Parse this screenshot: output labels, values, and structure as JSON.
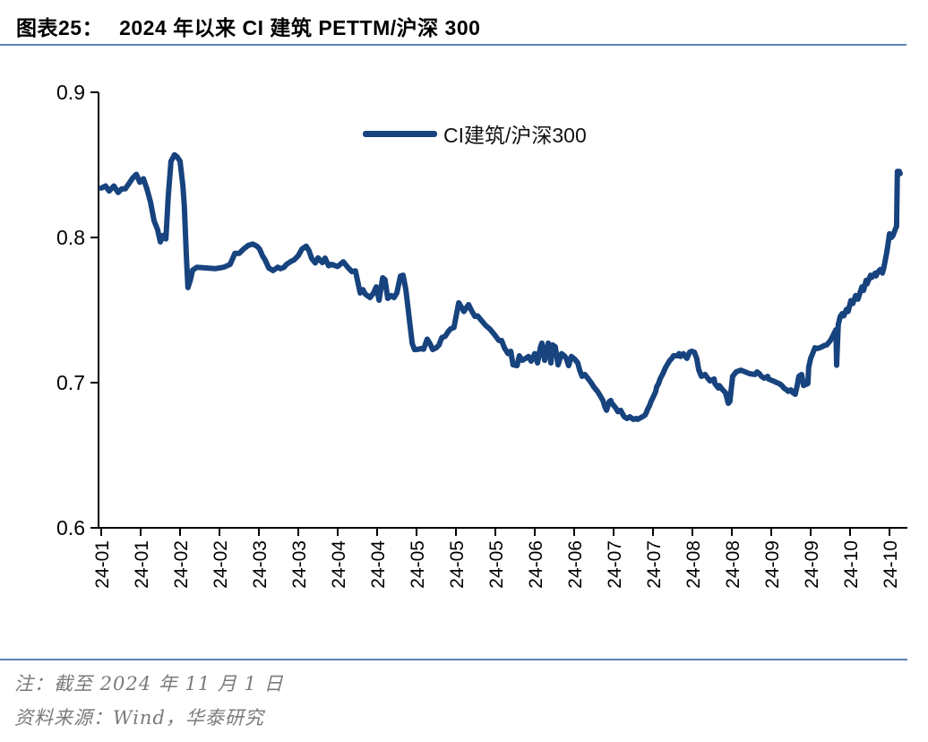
{
  "header": {
    "figure_label": "图表25：",
    "title": "2024 年以来 CI 建筑 PETTM/沪深 300"
  },
  "legend": {
    "series_label": "CI建筑/沪深300"
  },
  "footer": {
    "note": "注：截至 2024 年 11 月 1 日",
    "source": "资料来源：Wind，华泰研究"
  },
  "colors": {
    "line": "#17437E",
    "divider": "#5B84B4",
    "axis": "#000000",
    "tick_text": "#000000",
    "note_text": "#7A7A7A"
  },
  "chart_data": {
    "type": "line",
    "title": "2024 年以来 CI 建筑 PETTM/沪深 300",
    "series_name": "CI建筑/沪深300",
    "legend_position": "top-center",
    "grid": false,
    "ylim": [
      0.6,
      0.9
    ],
    "y_ticks": [
      "0.9",
      "0.8",
      "0.7",
      "0.6"
    ],
    "y_tick_values": [
      0.9,
      0.8,
      0.7,
      0.6
    ],
    "x_unit": "tick index, ticks are biweekly dates Jan–Oct 2024; series ends 2024-11-01",
    "x_tick_labels": [
      "24-01",
      "24-01",
      "24-02",
      "24-02",
      "24-03",
      "24-03",
      "24-04",
      "24-04",
      "24-05",
      "24-05",
      "24-05",
      "24-06",
      "24-06",
      "24-07",
      "24-07",
      "24-08",
      "24-08",
      "24-09",
      "24-09",
      "24-10",
      "24-10"
    ],
    "points": [
      [
        0.0,
        0.834
      ],
      [
        0.11,
        0.8355
      ],
      [
        0.2,
        0.832
      ],
      [
        0.32,
        0.8355
      ],
      [
        0.43,
        0.831
      ],
      [
        0.52,
        0.8335
      ],
      [
        0.61,
        0.8335
      ],
      [
        0.7,
        0.837
      ],
      [
        0.8,
        0.841
      ],
      [
        0.89,
        0.8435
      ],
      [
        0.98,
        0.838
      ],
      [
        1.07,
        0.8405
      ],
      [
        1.16,
        0.8335
      ],
      [
        1.25,
        0.8245
      ],
      [
        1.34,
        0.8115
      ],
      [
        1.43,
        0.8055
      ],
      [
        1.5,
        0.797
      ],
      [
        1.57,
        0.8015
      ],
      [
        1.64,
        0.799
      ],
      [
        1.7,
        0.828
      ],
      [
        1.77,
        0.8525
      ],
      [
        1.86,
        0.857
      ],
      [
        1.93,
        0.8555
      ],
      [
        2.0,
        0.8525
      ],
      [
        2.07,
        0.836
      ],
      [
        2.11,
        0.8215
      ],
      [
        2.16,
        0.788
      ],
      [
        2.2,
        0.7655
      ],
      [
        2.26,
        0.7705
      ],
      [
        2.32,
        0.7775
      ],
      [
        2.43,
        0.7795
      ],
      [
        2.66,
        0.779
      ],
      [
        2.89,
        0.7785
      ],
      [
        3.11,
        0.7795
      ],
      [
        3.27,
        0.7815
      ],
      [
        3.39,
        0.789
      ],
      [
        3.5,
        0.789
      ],
      [
        3.61,
        0.792
      ],
      [
        3.73,
        0.7945
      ],
      [
        3.84,
        0.7955
      ],
      [
        3.95,
        0.794
      ],
      [
        4.02,
        0.792
      ],
      [
        4.09,
        0.7875
      ],
      [
        4.16,
        0.7845
      ],
      [
        4.25,
        0.779
      ],
      [
        4.36,
        0.7772
      ],
      [
        4.48,
        0.7795
      ],
      [
        4.55,
        0.7785
      ],
      [
        4.64,
        0.7795
      ],
      [
        4.7,
        0.7815
      ],
      [
        4.8,
        0.7833
      ],
      [
        4.89,
        0.7845
      ],
      [
        5.0,
        0.7875
      ],
      [
        5.09,
        0.792
      ],
      [
        5.2,
        0.794
      ],
      [
        5.27,
        0.791
      ],
      [
        5.34,
        0.7855
      ],
      [
        5.43,
        0.7825
      ],
      [
        5.5,
        0.786
      ],
      [
        5.61,
        0.7827
      ],
      [
        5.68,
        0.7858
      ],
      [
        5.77,
        0.7805
      ],
      [
        5.84,
        0.7815
      ],
      [
        6.0,
        0.78
      ],
      [
        6.14,
        0.7833
      ],
      [
        6.25,
        0.7796
      ],
      [
        6.36,
        0.7765
      ],
      [
        6.45,
        0.777
      ],
      [
        6.57,
        0.7617
      ],
      [
        6.64,
        0.764
      ],
      [
        6.7,
        0.761
      ],
      [
        6.82,
        0.7586
      ],
      [
        6.91,
        0.7617
      ],
      [
        6.98,
        0.766
      ],
      [
        7.05,
        0.7568
      ],
      [
        7.14,
        0.7722
      ],
      [
        7.2,
        0.771
      ],
      [
        7.27,
        0.758
      ],
      [
        7.36,
        0.76
      ],
      [
        7.43,
        0.7586
      ],
      [
        7.5,
        0.7617
      ],
      [
        7.59,
        0.7734
      ],
      [
        7.66,
        0.774
      ],
      [
        7.73,
        0.764
      ],
      [
        7.82,
        0.743
      ],
      [
        7.89,
        0.727
      ],
      [
        7.95,
        0.7228
      ],
      [
        8.05,
        0.723
      ],
      [
        8.11,
        0.7235
      ],
      [
        8.18,
        0.723
      ],
      [
        8.27,
        0.73
      ],
      [
        8.34,
        0.727
      ],
      [
        8.41,
        0.7228
      ],
      [
        8.5,
        0.724
      ],
      [
        8.57,
        0.726
      ],
      [
        8.64,
        0.731
      ],
      [
        8.73,
        0.732
      ],
      [
        8.8,
        0.735
      ],
      [
        8.86,
        0.737
      ],
      [
        8.95,
        0.738
      ],
      [
        9.07,
        0.755
      ],
      [
        9.14,
        0.752
      ],
      [
        9.2,
        0.749
      ],
      [
        9.32,
        0.7537
      ],
      [
        9.41,
        0.749
      ],
      [
        9.48,
        0.7457
      ],
      [
        9.55,
        0.746
      ],
      [
        9.64,
        0.743
      ],
      [
        9.75,
        0.7395
      ],
      [
        9.86,
        0.737
      ],
      [
        9.98,
        0.733
      ],
      [
        10.09,
        0.729
      ],
      [
        10.16,
        0.729
      ],
      [
        10.23,
        0.724
      ],
      [
        10.32,
        0.72
      ],
      [
        10.39,
        0.7216
      ],
      [
        10.45,
        0.7123
      ],
      [
        10.55,
        0.7117
      ],
      [
        10.61,
        0.7185
      ],
      [
        10.68,
        0.7154
      ],
      [
        10.77,
        0.7167
      ],
      [
        10.84,
        0.718
      ],
      [
        10.91,
        0.7148
      ],
      [
        11.0,
        0.72
      ],
      [
        11.07,
        0.7136
      ],
      [
        11.14,
        0.724
      ],
      [
        11.18,
        0.7272
      ],
      [
        11.25,
        0.7154
      ],
      [
        11.34,
        0.7272
      ],
      [
        11.41,
        0.7136
      ],
      [
        11.45,
        0.726
      ],
      [
        11.52,
        0.7247
      ],
      [
        11.59,
        0.7123
      ],
      [
        11.68,
        0.72
      ],
      [
        11.75,
        0.7185
      ],
      [
        11.8,
        0.7167
      ],
      [
        11.86,
        0.7117
      ],
      [
        11.93,
        0.718
      ],
      [
        12.02,
        0.716
      ],
      [
        12.09,
        0.7136
      ],
      [
        12.14,
        0.7086
      ],
      [
        12.2,
        0.7043
      ],
      [
        12.27,
        0.7056
      ],
      [
        12.36,
        0.7025
      ],
      [
        12.43,
        0.7
      ],
      [
        12.5,
        0.697
      ],
      [
        12.59,
        0.694
      ],
      [
        12.66,
        0.691
      ],
      [
        12.73,
        0.6877
      ],
      [
        12.77,
        0.684
      ],
      [
        12.82,
        0.681
      ],
      [
        12.89,
        0.687
      ],
      [
        12.93,
        0.6877
      ],
      [
        12.95,
        0.686
      ],
      [
        13.05,
        0.6827
      ],
      [
        13.11,
        0.68
      ],
      [
        13.18,
        0.681
      ],
      [
        13.23,
        0.6784
      ],
      [
        13.27,
        0.6765
      ],
      [
        13.34,
        0.6753
      ],
      [
        13.41,
        0.6765
      ],
      [
        13.5,
        0.6747
      ],
      [
        13.57,
        0.6753
      ],
      [
        13.61,
        0.6747
      ],
      [
        13.73,
        0.6765
      ],
      [
        13.8,
        0.6777
      ],
      [
        13.84,
        0.68
      ],
      [
        13.86,
        0.6815
      ],
      [
        13.91,
        0.684
      ],
      [
        13.95,
        0.687
      ],
      [
        14.02,
        0.691
      ],
      [
        14.07,
        0.694
      ],
      [
        14.09,
        0.697
      ],
      [
        14.14,
        0.6994
      ],
      [
        14.18,
        0.7025
      ],
      [
        14.25,
        0.7062
      ],
      [
        14.32,
        0.7105
      ],
      [
        14.36,
        0.7123
      ],
      [
        14.43,
        0.7154
      ],
      [
        14.48,
        0.7167
      ],
      [
        14.52,
        0.7185
      ],
      [
        14.64,
        0.7185
      ],
      [
        14.66,
        0.72
      ],
      [
        14.7,
        0.718
      ],
      [
        14.77,
        0.72
      ],
      [
        14.86,
        0.7167
      ],
      [
        14.93,
        0.721
      ],
      [
        14.98,
        0.7216
      ],
      [
        15.05,
        0.721
      ],
      [
        15.11,
        0.7167
      ],
      [
        15.16,
        0.709
      ],
      [
        15.2,
        0.7062
      ],
      [
        15.23,
        0.7043
      ],
      [
        15.32,
        0.7056
      ],
      [
        15.39,
        0.703
      ],
      [
        15.45,
        0.7012
      ],
      [
        15.55,
        0.7025
      ],
      [
        15.57,
        0.6994
      ],
      [
        15.66,
        0.6963
      ],
      [
        15.68,
        0.698
      ],
      [
        15.77,
        0.695
      ],
      [
        15.84,
        0.693
      ],
      [
        15.91,
        0.6858
      ],
      [
        15.95,
        0.687
      ],
      [
        16.02,
        0.7043
      ],
      [
        16.11,
        0.7074
      ],
      [
        16.23,
        0.7086
      ],
      [
        16.34,
        0.7074
      ],
      [
        16.45,
        0.7062
      ],
      [
        16.59,
        0.7056
      ],
      [
        16.64,
        0.7074
      ],
      [
        16.7,
        0.7062
      ],
      [
        16.75,
        0.7043
      ],
      [
        16.82,
        0.7031
      ],
      [
        16.91,
        0.7043
      ],
      [
        16.93,
        0.7025
      ],
      [
        17.05,
        0.7012
      ],
      [
        17.14,
        0.7
      ],
      [
        17.2,
        0.6994
      ],
      [
        17.27,
        0.698
      ],
      [
        17.32,
        0.6963
      ],
      [
        17.39,
        0.695
      ],
      [
        17.43,
        0.694
      ],
      [
        17.5,
        0.695
      ],
      [
        17.55,
        0.693
      ],
      [
        17.61,
        0.692
      ],
      [
        17.66,
        0.698
      ],
      [
        17.7,
        0.7043
      ],
      [
        17.77,
        0.7056
      ],
      [
        17.82,
        0.698
      ],
      [
        17.93,
        0.6994
      ],
      [
        17.95,
        0.7105
      ],
      [
        18.0,
        0.7167
      ],
      [
        18.05,
        0.72
      ],
      [
        18.11,
        0.724
      ],
      [
        18.18,
        0.7235
      ],
      [
        18.27,
        0.7245
      ],
      [
        18.34,
        0.7255
      ],
      [
        18.41,
        0.726
      ],
      [
        18.5,
        0.729
      ],
      [
        18.57,
        0.7325
      ],
      [
        18.64,
        0.7365
      ],
      [
        18.66,
        0.712
      ],
      [
        18.7,
        0.74
      ],
      [
        18.75,
        0.7455
      ],
      [
        18.8,
        0.7475
      ],
      [
        18.84,
        0.746
      ],
      [
        18.91,
        0.7505
      ],
      [
        18.95,
        0.749
      ],
      [
        19.02,
        0.7565
      ],
      [
        19.07,
        0.7545
      ],
      [
        19.14,
        0.76
      ],
      [
        19.2,
        0.7575
      ],
      [
        19.3,
        0.766
      ],
      [
        19.34,
        0.7635
      ],
      [
        19.41,
        0.7705
      ],
      [
        19.43,
        0.768
      ],
      [
        19.52,
        0.774
      ],
      [
        19.55,
        0.7725
      ],
      [
        19.64,
        0.7755
      ],
      [
        19.66,
        0.7735
      ],
      [
        19.7,
        0.776
      ],
      [
        19.77,
        0.778
      ],
      [
        19.82,
        0.7755
      ],
      [
        19.86,
        0.7795
      ],
      [
        19.93,
        0.7895
      ],
      [
        19.98,
        0.7985
      ],
      [
        20.0,
        0.8025
      ],
      [
        20.05,
        0.8
      ],
      [
        20.09,
        0.8015
      ],
      [
        20.16,
        0.8065
      ],
      [
        20.18,
        0.8075
      ],
      [
        20.2,
        0.8455
      ],
      [
        20.25,
        0.8455
      ],
      [
        20.27,
        0.844
      ]
    ]
  }
}
